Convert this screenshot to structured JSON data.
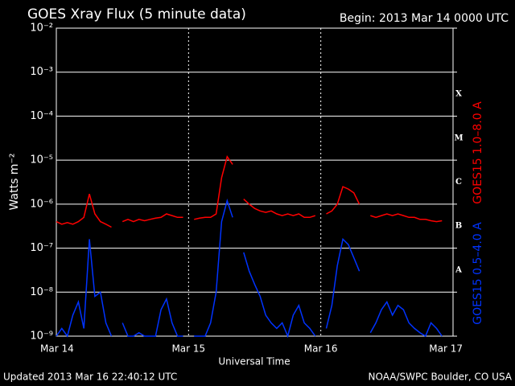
{
  "chart_data": {
    "type": "line",
    "title": "GOES Xray Flux (5 minute data)",
    "subtitle": "Begin:  2013 Mar 14 0000 UTC",
    "x_label": "Universal Time",
    "y_label": "Watts m⁻²",
    "footer_left": "Updated 2013 Mar 16 22:40:12 UTC",
    "footer_right": "NOAA/SWPC Boulder, CO USA",
    "log_y": true,
    "grid": true,
    "xlim": [
      0,
      72
    ],
    "xticks": [
      {
        "value": 0,
        "label": "Mar 14"
      },
      {
        "value": 24,
        "label": "Mar 15"
      },
      {
        "value": 48,
        "label": "Mar 16"
      },
      {
        "value": 72,
        "label": "Mar 17"
      }
    ],
    "ylim": [
      1e-09,
      0.01
    ],
    "yticks": [
      {
        "value": 1e-09,
        "label": "10⁻⁹"
      },
      {
        "value": 1e-08,
        "label": "10⁻⁸"
      },
      {
        "value": 1e-07,
        "label": "10⁻⁷"
      },
      {
        "value": 1e-06,
        "label": "10⁻⁶"
      },
      {
        "value": 1e-05,
        "label": "10⁻⁵"
      },
      {
        "value": 0.0001,
        "label": "10⁻⁴"
      },
      {
        "value": 0.001,
        "label": "10⁻³"
      },
      {
        "value": 0.01,
        "label": "10⁻²"
      }
    ],
    "flare_classes": [
      "A",
      "B",
      "C",
      "M",
      "X"
    ],
    "x": [
      0,
      1,
      2,
      3,
      4,
      5,
      6,
      7,
      8,
      9,
      10,
      11,
      12,
      13,
      14,
      15,
      16,
      17,
      18,
      19,
      20,
      21,
      22,
      23,
      24,
      25,
      26,
      27,
      28,
      29,
      30,
      31,
      32,
      33,
      34,
      35,
      36,
      37,
      38,
      39,
      40,
      41,
      42,
      43,
      44,
      45,
      46,
      47,
      48,
      49,
      50,
      51,
      52,
      53,
      54,
      55,
      56,
      57,
      58,
      59,
      60,
      61,
      62,
      63,
      64,
      65,
      66,
      67,
      68,
      69,
      70,
      71,
      72
    ],
    "series": [
      {
        "name": "GOES15 1.0–8.0 A",
        "color": "#ff0000",
        "values": [
          4e-07,
          3.5e-07,
          3.8e-07,
          3.5e-07,
          4e-07,
          5e-07,
          1.7e-06,
          6e-07,
          4e-07,
          3.5e-07,
          3e-07,
          null,
          4e-07,
          4.5e-07,
          4e-07,
          4.5e-07,
          4.2e-07,
          4.5e-07,
          4.8e-07,
          5e-07,
          6e-07,
          5.5e-07,
          5e-07,
          5e-07,
          null,
          4.5e-07,
          4.8e-07,
          5e-07,
          5e-07,
          6e-07,
          4e-06,
          1.2e-05,
          8e-06,
          null,
          1.3e-06,
          1e-06,
          8e-07,
          7e-07,
          6.5e-07,
          7e-07,
          6e-07,
          5.5e-07,
          6e-07,
          5.5e-07,
          6e-07,
          5e-07,
          5e-07,
          5.5e-07,
          null,
          6e-07,
          7e-07,
          1e-06,
          2.5e-06,
          2.2e-06,
          1.8e-06,
          1e-06,
          null,
          5.5e-07,
          5e-07,
          5.5e-07,
          6e-07,
          5.5e-07,
          6e-07,
          5.5e-07,
          5e-07,
          5e-07,
          4.5e-07,
          4.5e-07,
          4.2e-07,
          4e-07,
          4.2e-07,
          null,
          null
        ]
      },
      {
        "name": "GOES15 0.5–4.0 A",
        "color": "#0033ff",
        "values": [
          1e-09,
          1.5e-09,
          1e-09,
          3e-09,
          6e-09,
          1.5e-09,
          1.6e-07,
          8e-09,
          1e-08,
          2e-09,
          1e-09,
          null,
          2e-09,
          1e-09,
          1e-09,
          1.2e-09,
          1e-09,
          1e-09,
          1e-09,
          4e-09,
          7e-09,
          2e-09,
          1e-09,
          1e-09,
          null,
          1e-09,
          1e-09,
          1e-09,
          2e-09,
          1e-08,
          4e-07,
          1.2e-06,
          5e-07,
          null,
          8e-08,
          3e-08,
          1.5e-08,
          8e-09,
          3e-09,
          2e-09,
          1.5e-09,
          2e-09,
          1e-09,
          3e-09,
          5e-09,
          2e-09,
          1.5e-09,
          1e-09,
          null,
          1.5e-09,
          5e-09,
          4e-08,
          1.6e-07,
          1.2e-07,
          6e-08,
          3e-08,
          null,
          1.2e-09,
          2e-09,
          4e-09,
          6e-09,
          3e-09,
          5e-09,
          4e-09,
          2e-09,
          1.5e-09,
          1.2e-09,
          1e-09,
          2e-09,
          1.5e-09,
          1e-09,
          null,
          null
        ]
      }
    ]
  }
}
